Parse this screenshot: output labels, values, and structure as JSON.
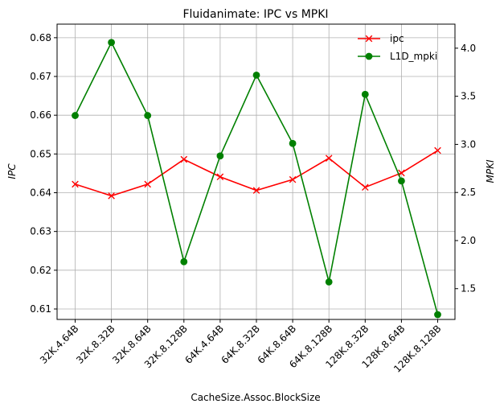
{
  "chart_data": {
    "type": "line",
    "title": "Fluidanimate: IPC vs MPKI",
    "xlabel": "CacheSize.Assoc.BlockSize",
    "ylabel_left": "IPC",
    "ylabel_right": "MPKI",
    "categories": [
      "32K.4.64B",
      "32K.8.32B",
      "32K.8.64B",
      "32K.8.128B",
      "64K.4.64B",
      "64K.8.32B",
      "64K.8.64B",
      "64K.8.128B",
      "128K.8.32B",
      "128K.8.64B",
      "128K.8.128B"
    ],
    "ylim_left": [
      0.6073,
      0.6835
    ],
    "ylim_right": [
      1.18,
      4.25
    ],
    "yticks_left": [
      "0.61",
      "0.62",
      "0.63",
      "0.64",
      "0.65",
      "0.66",
      "0.67",
      "0.68"
    ],
    "yticks_right": [
      "1.5",
      "2.0",
      "2.5",
      "3.0",
      "3.5",
      "4.0"
    ],
    "grid": true,
    "legend_position": "top-right",
    "series": [
      {
        "name": "ipc",
        "axis": "left",
        "color": "#ff0000",
        "marker": "x",
        "values": [
          0.6422,
          0.6392,
          0.6422,
          0.6486,
          0.6441,
          0.6406,
          0.6434,
          0.6489,
          0.6414,
          0.6451,
          0.6509
        ]
      },
      {
        "name": "L1D_mpki",
        "axis": "right",
        "color": "#008000",
        "marker": "o",
        "values": [
          3.3,
          4.06,
          3.3,
          1.78,
          2.88,
          3.72,
          3.01,
          1.57,
          3.52,
          2.62,
          1.23
        ]
      }
    ]
  }
}
